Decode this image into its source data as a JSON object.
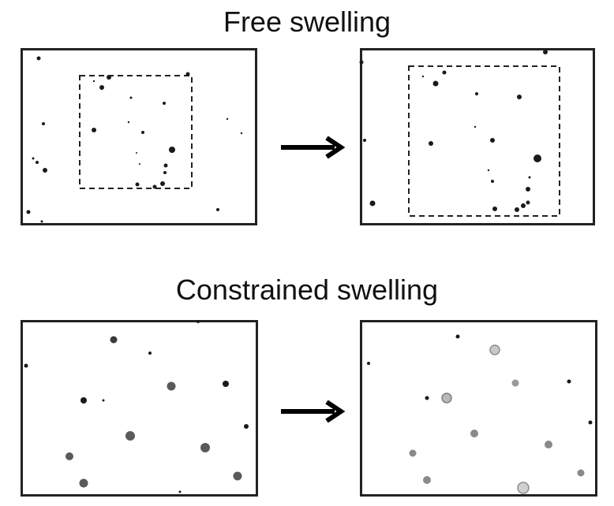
{
  "titles": {
    "free": "Free swelling",
    "constrained": "Constrained swelling"
  },
  "colors": {
    "frame": "#222222",
    "dark_particle": "#1a1a1a",
    "grey_particle": "#6e6e6e",
    "light_particle": "#a8a8a8"
  },
  "icons": {
    "arrow": "right-arrow-icon"
  }
}
